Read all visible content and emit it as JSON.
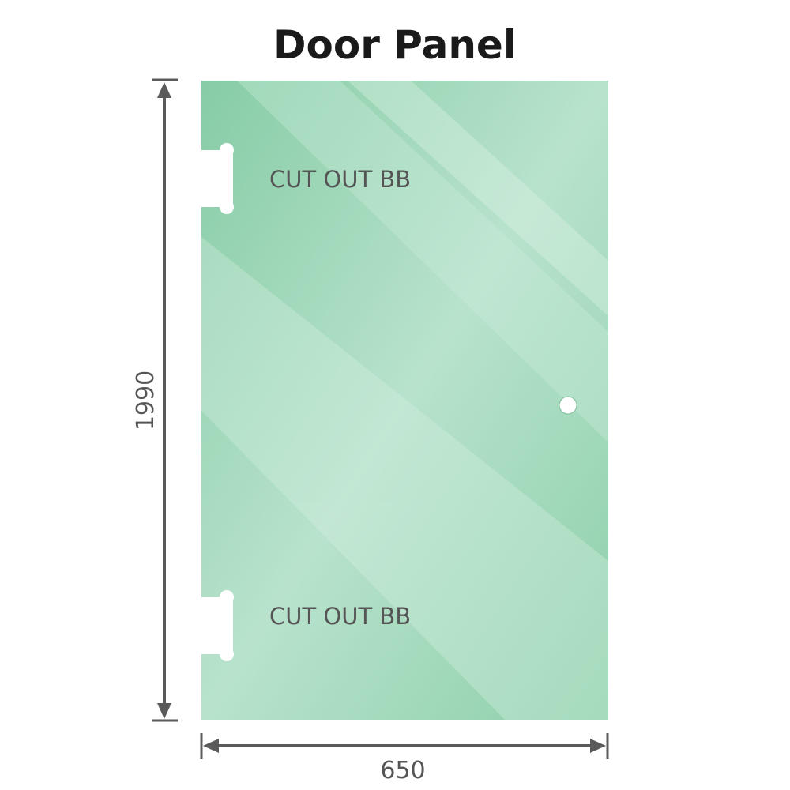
{
  "title": "Door Panel",
  "panel": {
    "height_label": "1990",
    "width_label": "650",
    "cutouts": [
      {
        "label": "CUT OUT BB"
      },
      {
        "label": "CUT OUT BB"
      }
    ],
    "colors": {
      "glass": "#8ccfaa",
      "dimension_line": "#5a5a5a",
      "label": "#555555"
    }
  }
}
